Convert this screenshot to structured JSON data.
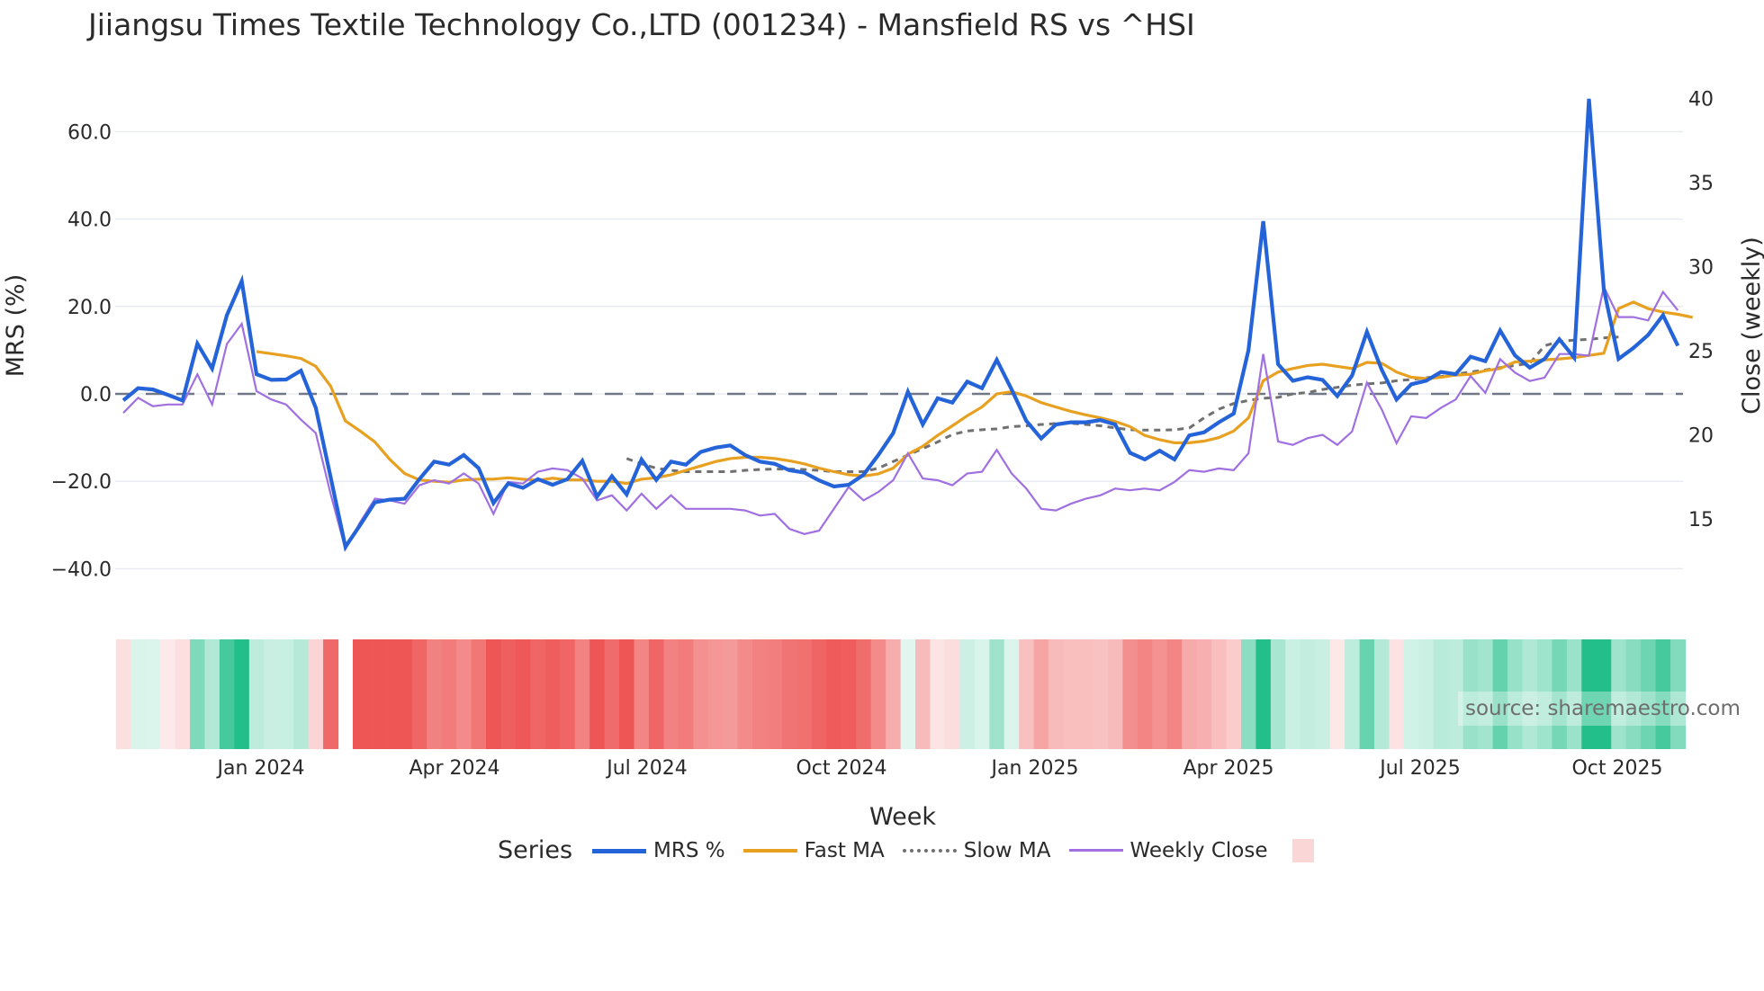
{
  "header": {
    "title": "Jiiangsu Times Textile Technology Co.,LTD (001234) - Mansfield RS vs ^HSI"
  },
  "axes": {
    "left_title": "MRS (%)",
    "right_title": "Close (weekly)",
    "x_title": "Week",
    "left_ticks": [
      "60.0",
      "40.0",
      "20.0",
      "0.0",
      "−20.0",
      "−40.0"
    ],
    "right_ticks": [
      "40",
      "35",
      "30",
      "25",
      "20",
      "15"
    ],
    "x_ticks": [
      "Jan 2024",
      "Apr 2024",
      "Jul 2024",
      "Oct 2024",
      "Jan 2025",
      "Apr 2025",
      "Jul 2025",
      "Oct 2025"
    ]
  },
  "legend": {
    "title": "Series",
    "items": [
      {
        "label": "MRS %",
        "color": "#2563d8"
      },
      {
        "label": "Fast MA",
        "color": "#e8a020"
      },
      {
        "label": "Slow MA",
        "color": "#707070"
      },
      {
        "label": "Weekly Close",
        "color": "#a070e0"
      }
    ]
  },
  "watermark": "source: sharemaestro.com",
  "colors": {
    "mrs": "#2563d8",
    "mrs_spike": "#4a4ae0",
    "fast_ma": "#e8a020",
    "slow_ma": "#707070",
    "close": "#a070e0",
    "zero_line": "#707888",
    "grid": "#e8ebf0",
    "heat_positive": "#22bf8a",
    "heat_negative": "#ee5555"
  },
  "chart_data": {
    "type": "line",
    "title": "Jiiangsu Times Textile Technology Co.,LTD (001234) - Mansfield RS vs ^HSI",
    "xlabel": "Week",
    "ylabel": "MRS (%)",
    "y2label": "Close (weekly)",
    "ylim": [
      -50,
      72
    ],
    "y2lim": [
      10.8,
      41.2
    ],
    "grid": true,
    "legend_position": "bottom",
    "x_tick_labels": [
      "Jan 2024",
      "Apr 2024",
      "Jul 2024",
      "Oct 2024",
      "Jan 2025",
      "Apr 2025",
      "Jul 2025",
      "Oct 2025"
    ],
    "x_start_week": "2023-10-30",
    "n_weeks": 106,
    "series": [
      {
        "name": "MRS %",
        "axis": "left",
        "values": [
          -1.5,
          1.3,
          1.0,
          -0.2,
          -1.5,
          11.5,
          5.8,
          18,
          25.8,
          4.5,
          3.2,
          3.3,
          5.3,
          -3.2,
          -19,
          -35,
          -30,
          -24.8,
          -24.2,
          -24,
          -19.5,
          -15.5,
          -16.2,
          -14,
          -17,
          -25,
          -20.5,
          -21.5,
          -19.5,
          -20.8,
          -19.5,
          -15.3,
          -23.5,
          -18.8,
          -23,
          -15,
          -19.7,
          -15.5,
          -16.2,
          -13.3,
          -12.3,
          -11.8,
          -14,
          -15.5,
          -16,
          -17.5,
          -18,
          -19.8,
          -21.2,
          -20.8,
          -18.5,
          -14,
          -9,
          0.5,
          -7,
          -1,
          -2,
          2.8,
          1.3,
          7.8,
          1,
          -6.2,
          -10.2,
          -7,
          -6.5,
          -6.5,
          -6,
          -7,
          -13.5,
          -15,
          -13,
          -15,
          -9.5,
          -8.8,
          -6.5,
          -4.5,
          10,
          39.5,
          6.8,
          3,
          3.8,
          3.2,
          -0.5,
          4.2,
          14.2,
          5.5,
          -1.3,
          2.2,
          3,
          5,
          4.5,
          8.5,
          7.5,
          14.5,
          8.8,
          6,
          8,
          12.5,
          8.3,
          67.5,
          24,
          8,
          10.5,
          13.5,
          18,
          11
        ],
        "note": "thick blue line; values read from gridlines"
      },
      {
        "name": "Fast MA",
        "axis": "left",
        "start_index": 9,
        "values": [
          9.7,
          9.2,
          8.7,
          8.1,
          6.3,
          1.8,
          -6.2,
          -8.5,
          -11,
          -15,
          -18.2,
          -19.7,
          -20,
          -20.2,
          -19.7,
          -19.5,
          -19.5,
          -19.2,
          -19.5,
          -19.8,
          -19.3,
          -19.7,
          -19.7,
          -20,
          -20,
          -20.5,
          -19.5,
          -19.2,
          -18.5,
          -17.5,
          -16.5,
          -15.5,
          -14.8,
          -14.5,
          -14.5,
          -14.8,
          -15.3,
          -16,
          -17,
          -17.8,
          -18.5,
          -18.8,
          -18.3,
          -17,
          -13.8,
          -12,
          -9.5,
          -7.3,
          -5,
          -3,
          0,
          0.5,
          -0.5,
          -2,
          -3,
          -4,
          -4.8,
          -5.5,
          -6.3,
          -7.5,
          -9.5,
          -10.5,
          -11.2,
          -11.2,
          -10.8,
          -10,
          -8.5,
          -5.5,
          3,
          5,
          5.8,
          6.5,
          6.8,
          6.3,
          5.8,
          7.2,
          7,
          5,
          3.8,
          3.5,
          3.8,
          4.3,
          4.5,
          5.3,
          5.8,
          7.3,
          7.5,
          7.8,
          8,
          8.3,
          8.8,
          9.3,
          19.5,
          21,
          19.5,
          18.7,
          18.2,
          17.5
        ],
        "note": "orange line starting near Jan 2024"
      },
      {
        "name": "Slow MA",
        "axis": "left",
        "start_index": 34,
        "values": [
          -14.8,
          -16,
          -17,
          -17.5,
          -17.8,
          -17.8,
          -17.8,
          -17.8,
          -17.5,
          -17.3,
          -17.2,
          -17.2,
          -17.3,
          -17.5,
          -17.8,
          -17.8,
          -17.8,
          -17,
          -15.5,
          -14,
          -12.5,
          -11,
          -9.3,
          -8.5,
          -8.2,
          -8,
          -7.5,
          -7.3,
          -7,
          -6.8,
          -6.7,
          -7,
          -7.3,
          -7.8,
          -8.2,
          -8.3,
          -8.3,
          -8.2,
          -7.8,
          -5.5,
          -3.5,
          -2.2,
          -1.5,
          -1,
          -0.8,
          0,
          0.3,
          1,
          1.5,
          2,
          2.3,
          2.5,
          3,
          3.3,
          3.7,
          4,
          4.5,
          5,
          5.5,
          6,
          6.5,
          7,
          11,
          12,
          12.3,
          12.5,
          12.8,
          13
        ],
        "note": "grey dotted line starting mid-2024"
      },
      {
        "name": "Weekly Close",
        "axis": "right",
        "values": [
          21.3,
          22.2,
          21.7,
          21.8,
          21.8,
          23.6,
          21.8,
          25.4,
          26.6,
          22.6,
          22.1,
          21.8,
          20.9,
          20.1,
          16.5,
          13.2,
          14.8,
          16.2,
          16.1,
          15.9,
          17,
          17.3,
          17.1,
          17.7,
          17.1,
          15.3,
          17.2,
          17.1,
          17.8,
          18,
          17.9,
          17.4,
          16.1,
          16.4,
          15.5,
          16.5,
          15.6,
          16.4,
          15.6,
          15.6,
          15.6,
          15.6,
          15.5,
          15.2,
          15.3,
          14.4,
          14.1,
          14.3,
          15.6,
          16.9,
          16.1,
          16.6,
          17.3,
          18.9,
          17.4,
          17.3,
          17,
          17.7,
          17.8,
          19.1,
          17.7,
          16.8,
          15.6,
          15.5,
          15.9,
          16.2,
          16.4,
          16.8,
          16.7,
          16.8,
          16.7,
          17.2,
          17.9,
          17.8,
          18,
          17.9,
          18.9,
          24.8,
          19.6,
          19.4,
          19.8,
          20,
          19.4,
          20.2,
          23.1,
          21.5,
          19.5,
          21.1,
          21,
          21.6,
          22.1,
          23.5,
          22.5,
          24.5,
          23.7,
          23.2,
          23.4,
          24.8,
          24.8,
          24.7,
          28.8,
          27,
          27,
          26.8,
          28.5,
          27.4
        ],
        "note": "thin purple line on right axis"
      }
    ],
    "heatmap_strip": {
      "description": "Weekly MRS regime strip (green=positive, red=negative; intensity=magnitude), with one gap in Feb 2024",
      "gap_index": 15,
      "values_follow_series": "MRS %"
    },
    "reference_lines": [
      {
        "axis": "left",
        "y": 0,
        "style": "dashed"
      }
    ]
  }
}
